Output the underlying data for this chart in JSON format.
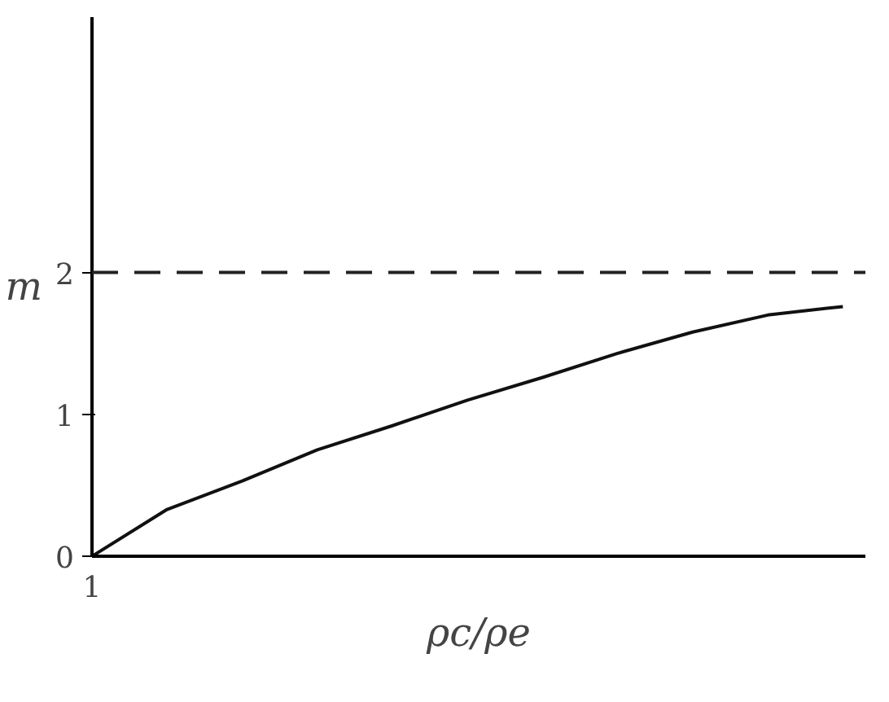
{
  "chart_data": {
    "type": "line",
    "xlabel": "ρc/ρe",
    "ylabel": "m",
    "categories": [
      "1",
      null,
      null,
      null,
      null,
      null,
      null,
      null,
      null,
      null,
      null
    ],
    "series": [
      {
        "color": "#111111",
        "values": [
          0,
          0.33,
          0.53,
          0.75,
          0.92,
          1.1,
          1.26,
          1.43,
          1.58,
          1.7,
          1.76
        ]
      }
    ],
    "ylim": [
      0,
      3.8
    ],
    "yticks": [
      0,
      1,
      2
    ],
    "ref_lines": [
      {
        "axis": "y",
        "value": 2,
        "color": "#222222",
        "line_style": "dashed"
      }
    ],
    "grid": false,
    "marker": "none",
    "line_style": "solid"
  }
}
